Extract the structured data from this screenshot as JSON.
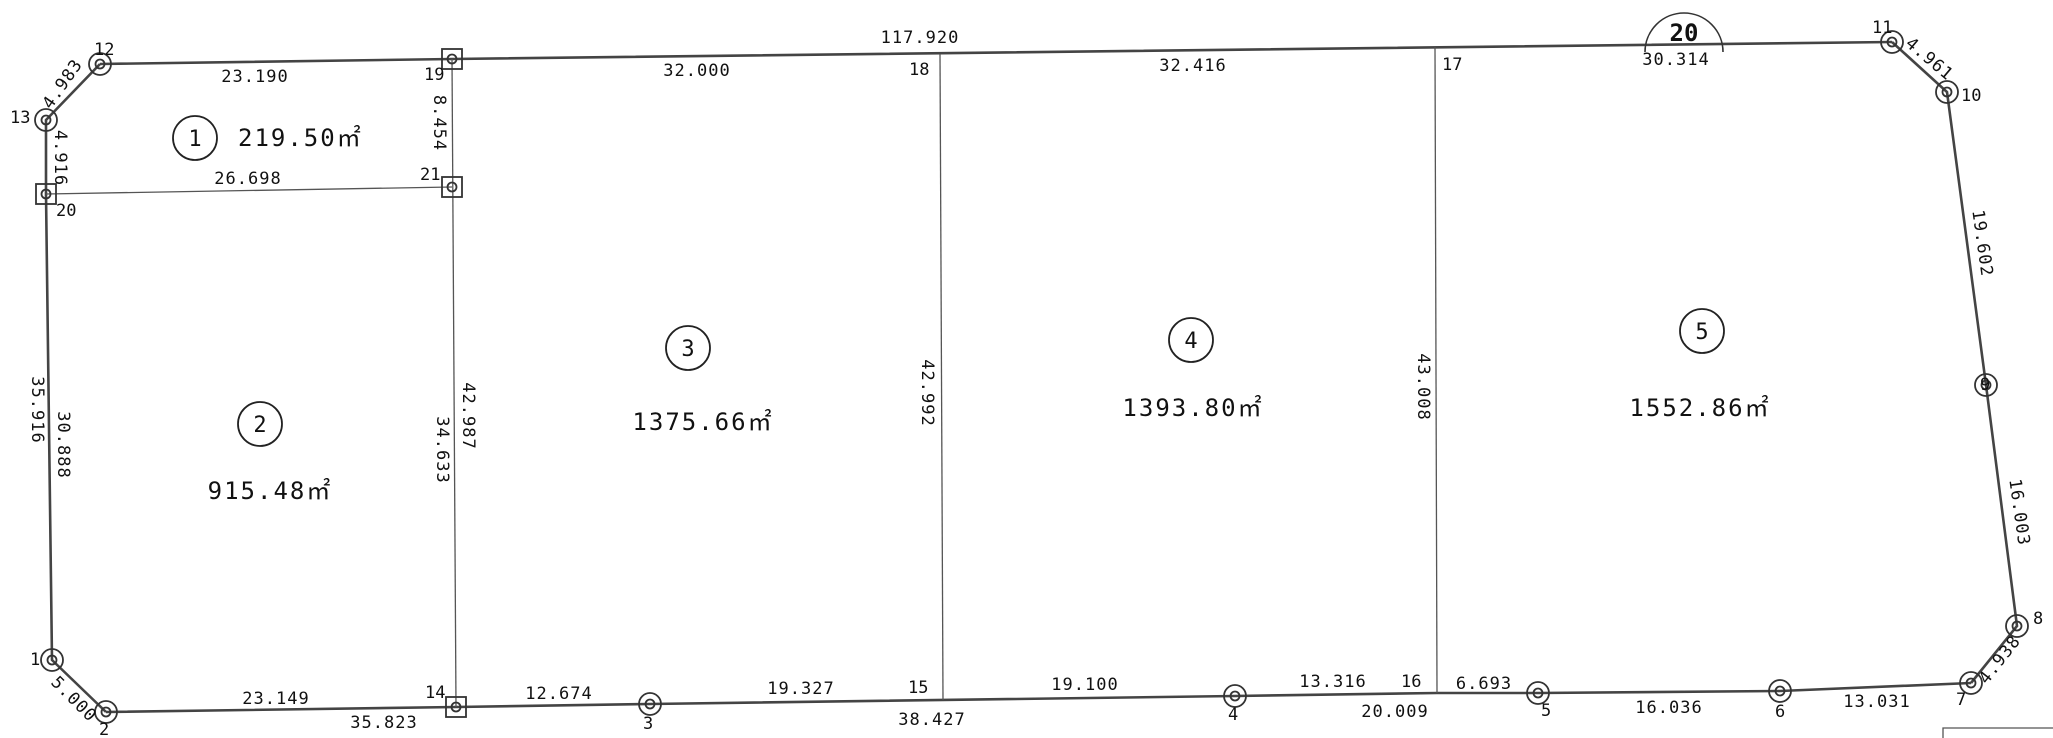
{
  "sheet_number": "20",
  "overall_top_length": "117.920",
  "lots": [
    {
      "number": "1",
      "area": "219.50㎡"
    },
    {
      "number": "2",
      "area": "915.48㎡"
    },
    {
      "number": "3",
      "area": "1375.66㎡"
    },
    {
      "number": "4",
      "area": "1393.80㎡"
    },
    {
      "number": "5",
      "area": "1552.86㎡"
    }
  ],
  "points": [
    "1",
    "2",
    "3",
    "4",
    "5",
    "6",
    "7",
    "8",
    "9",
    "10",
    "11",
    "12",
    "13",
    "14",
    "15",
    "16",
    "17",
    "18",
    "19",
    "20",
    "21"
  ],
  "dimensions": {
    "top_12_19": "23.190",
    "top_19_18": "32.000",
    "top_18_17": "32.416",
    "top_17_11": "30.314",
    "seg_11_10": "4.961",
    "seg_10_9": "19.602",
    "seg_9_8": "16.003",
    "seg_8_7": "4.938",
    "bot_7_6": "13.031",
    "bot_6_5": "16.036",
    "bot_5_16": "6.693",
    "bot_16_4": "13.316",
    "bot_4_15": "19.100",
    "bot_15_3": "19.327",
    "bot_3_14": "12.674",
    "bot_14_2": "23.149",
    "bot_15_5": "20.009",
    "bot_14_4": "38.427",
    "bot_2_3": "35.823",
    "seg_1_2": "5.000",
    "left_1_13": "35.916",
    "left_1_20": "30.888",
    "seg_13_12": "4.983",
    "seg_13_20": "4.916",
    "line_20_21": "26.698",
    "line_19_21": "8.454",
    "line_19_14": "42.987",
    "line_21_14": "34.633",
    "line_18_15": "42.992",
    "line_17_16": "43.008"
  }
}
